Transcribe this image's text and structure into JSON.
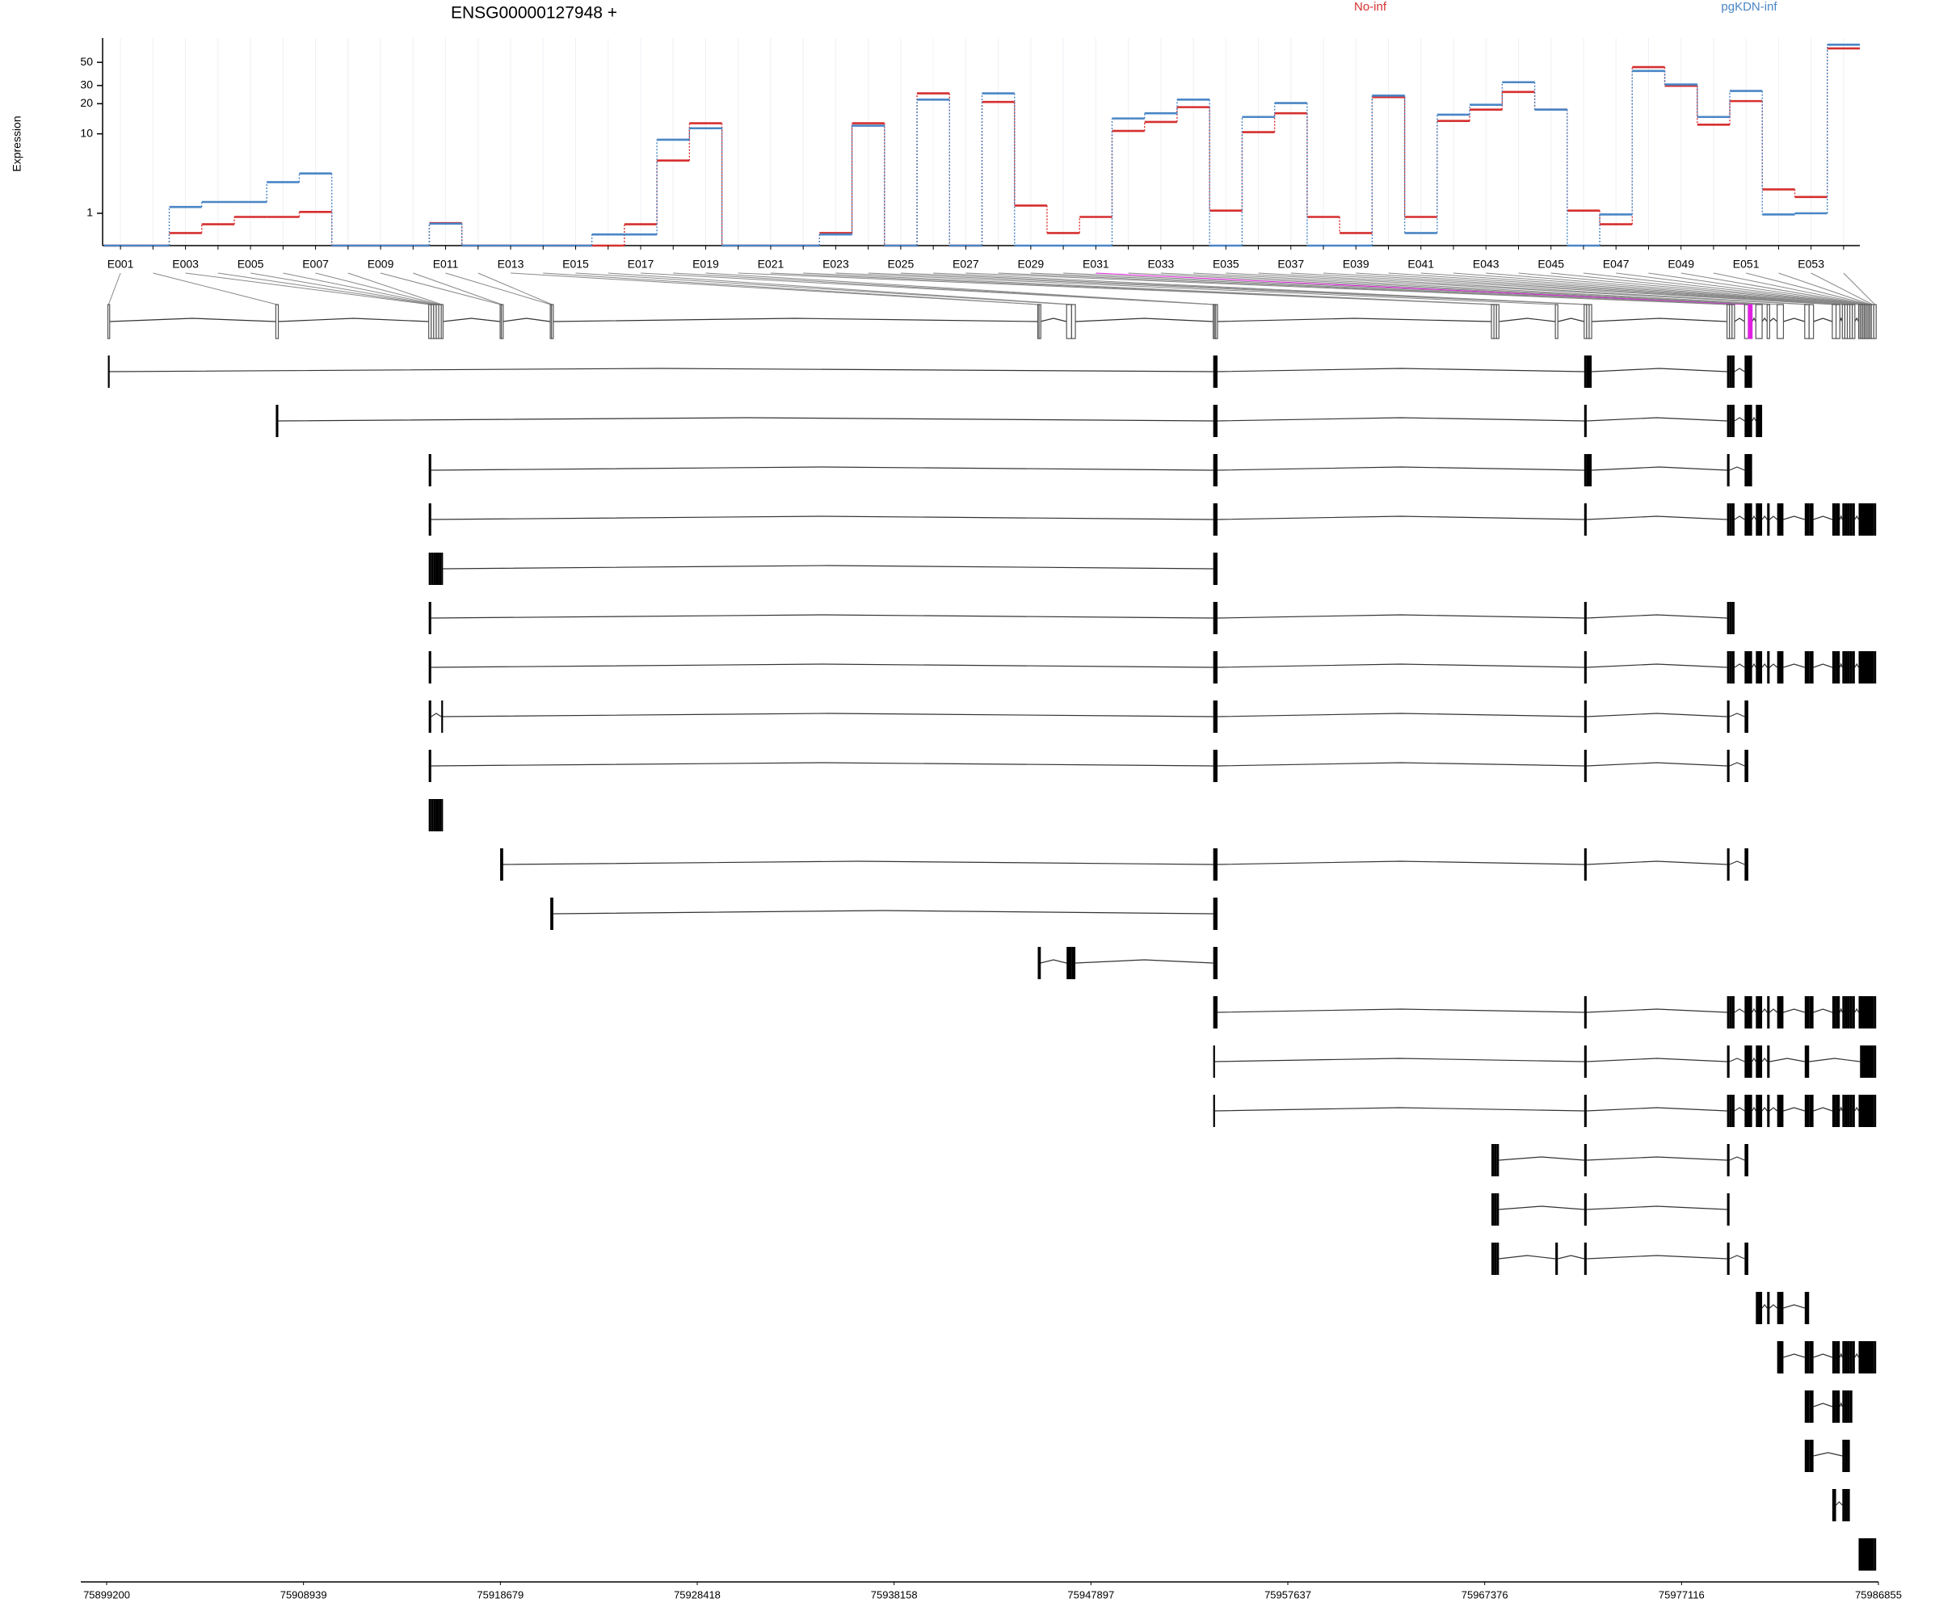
{
  "chart_data": {
    "type": "step",
    "title": "ENSG00000127948 +",
    "y_label": "Expression",
    "yscale": "log1p",
    "ylim": [
      0,
      85
    ],
    "yticks": [
      1,
      10,
      20,
      30,
      50
    ],
    "categories": [
      "E001",
      null,
      "E003",
      null,
      "E005",
      null,
      "E007",
      null,
      "E009",
      null,
      "E011",
      null,
      "E013",
      null,
      "E015",
      null,
      "E017",
      null,
      "E019",
      null,
      "E021",
      null,
      "E023",
      null,
      "E025",
      null,
      "E027",
      null,
      "E029",
      null,
      "E031",
      null,
      "E033",
      null,
      "E035",
      null,
      "E037",
      null,
      "E039",
      null,
      "E041",
      null,
      "E043",
      null,
      "E045",
      null,
      "E047",
      null,
      "E049",
      null,
      "E051",
      null,
      "E053",
      null
    ],
    "series": [
      {
        "name": "No-inf",
        "color": "#d62f2f",
        "values": [
          0,
          0,
          0.31,
          0.58,
          0.85,
          0.85,
          1.06,
          0,
          0,
          0,
          0.62,
          0,
          0,
          0,
          0,
          0,
          0.58,
          5.2,
          12.8,
          0,
          0,
          0,
          0.31,
          12.8,
          0,
          25.2,
          0,
          20.8,
          1.36,
          0.31,
          0.85,
          10.7,
          13.2,
          18.5,
          1.12,
          10.4,
          16.1,
          0.85,
          0.31,
          23.2,
          0.85,
          13.5,
          17.5,
          26,
          17.5,
          1.12,
          0.58,
          45,
          29.8,
          12.4,
          21.2,
          2.34,
          1.84,
          67.7
        ]
      },
      {
        "name": "pgKDN-inf",
        "color": "#4a86c5",
        "values": [
          0,
          0,
          1.29,
          1.55,
          1.55,
          2.9,
          3.7,
          0,
          0,
          0,
          0.6,
          0,
          0,
          0,
          0,
          0.27,
          0.27,
          8.7,
          11.4,
          0,
          0,
          0,
          0.27,
          12.1,
          0,
          21.9,
          0,
          25.2,
          0,
          0,
          0,
          14.3,
          16.1,
          21.9,
          0,
          14.8,
          20.3,
          0,
          0,
          24,
          0.31,
          15.6,
          19.5,
          32.3,
          17.5,
          0,
          0.95,
          41.4,
          30.7,
          14.8,
          26.6,
          0.95,
          1,
          73.5
        ]
      }
    ],
    "highlight": {
      "exon": 30,
      "color": "#e020e0"
    },
    "x2lim": [
      75899200,
      75986855
    ],
    "x2ticks": [
      75899200,
      75908939,
      75918679,
      75928418,
      75938158,
      75947897,
      75957637,
      75967376,
      75977116,
      75986855
    ],
    "exons": [
      [
        75899262,
        75899324
      ],
      [
        75907570,
        75907694
      ],
      [
        75915134,
        75915258
      ],
      [
        75915258,
        75915382
      ],
      [
        75915382,
        75915506
      ],
      [
        75915506,
        75915630
      ],
      [
        75915630,
        75915754
      ],
      [
        75915754,
        75915816
      ],
      [
        75918668,
        75918730
      ],
      [
        75918730,
        75918792
      ],
      [
        75921148,
        75921210
      ],
      [
        75921210,
        75921272
      ],
      [
        75945266,
        75945328
      ],
      [
        75945328,
        75945390
      ],
      [
        75946692,
        75946940
      ],
      [
        75946940,
        75947126
      ],
      [
        75953946,
        75954008
      ],
      [
        75954008,
        75954070
      ],
      [
        75954070,
        75954132
      ],
      [
        75967710,
        75967834
      ],
      [
        75967834,
        75967958
      ],
      [
        75967958,
        75968082
      ],
      [
        75970872,
        75970996
      ],
      [
        75972298,
        75972422
      ],
      [
        75972422,
        75972546
      ],
      [
        75972546,
        75972670
      ],
      [
        75979366,
        75979490
      ],
      [
        75979490,
        75979614
      ],
      [
        75979614,
        75979738
      ],
      [
        75980234,
        75980420
      ],
      [
        75980420,
        75980606
      ],
      [
        75980792,
        75981102
      ],
      [
        75981350,
        75981474
      ],
      [
        75981846,
        75982156
      ],
      [
        75983210,
        75983427
      ],
      [
        75983427,
        75983644
      ],
      [
        75984574,
        75984760
      ],
      [
        75984760,
        75984946
      ],
      [
        75985070,
        75985194
      ],
      [
        75985194,
        75985318
      ],
      [
        75985318,
        75985442
      ],
      [
        75985442,
        75985566
      ],
      [
        75985566,
        75985690
      ],
      [
        75985876,
        75985946
      ],
      [
        75985946,
        75986016
      ],
      [
        75986016,
        75986086
      ],
      [
        75986086,
        75986156
      ],
      [
        75986156,
        75986226
      ],
      [
        75986226,
        75986296
      ],
      [
        75986296,
        75986366
      ],
      [
        75986366,
        75986436
      ],
      [
        75986436,
        75986506
      ],
      [
        75986506,
        75986626
      ],
      [
        75986626,
        75986744
      ]
    ],
    "transcripts": [
      [
        0,
        16,
        17,
        18,
        23,
        24,
        25,
        26,
        27,
        28,
        29,
        30
      ],
      [
        1,
        16,
        17,
        18,
        23,
        26,
        27,
        28,
        29,
        30,
        31
      ],
      [
        2,
        16,
        17,
        18,
        23,
        24,
        25,
        26,
        29,
        30
      ],
      [
        2,
        16,
        17,
        18,
        23,
        26,
        27,
        28,
        29,
        30,
        31,
        32,
        33,
        34,
        35,
        36,
        37,
        38,
        39,
        40,
        41,
        42,
        43,
        44,
        45,
        46,
        47,
        48,
        49,
        50,
        51,
        52,
        53
      ],
      [
        2,
        3,
        4,
        5,
        6,
        7,
        16,
        17,
        18
      ],
      [
        2,
        16,
        17,
        18,
        23,
        26,
        27,
        28
      ],
      [
        2,
        16,
        17,
        18,
        23,
        26,
        27,
        28,
        29,
        30,
        31,
        32,
        33,
        34,
        35,
        36,
        37,
        38,
        39,
        40,
        41,
        42,
        43,
        44,
        45,
        46,
        47,
        48,
        49,
        50,
        51,
        52,
        53
      ],
      [
        2,
        7,
        16,
        17,
        18,
        23,
        26,
        29
      ],
      [
        2,
        16,
        17,
        18,
        23,
        26,
        29
      ],
      [
        2,
        3,
        4,
        5,
        6,
        7
      ],
      [
        8,
        9,
        16,
        17,
        18,
        23,
        26,
        29
      ],
      [
        10,
        11,
        16,
        17,
        18
      ],
      [
        12,
        13,
        14,
        15,
        16,
        17,
        18
      ],
      [
        16,
        17,
        18,
        23,
        26,
        27,
        28,
        29,
        30,
        31,
        32,
        33,
        34,
        35,
        36,
        37,
        38,
        39,
        40,
        41,
        42,
        43,
        44,
        45,
        46,
        47,
        48,
        49,
        50,
        51,
        52,
        53
      ],
      [
        16,
        23,
        26,
        29,
        30,
        31,
        32,
        34,
        44,
        45,
        46,
        47,
        48,
        49,
        50,
        51,
        52,
        53
      ],
      [
        16,
        23,
        26,
        27,
        28,
        29,
        30,
        31,
        32,
        33,
        34,
        35,
        36,
        37,
        38,
        39,
        40,
        41,
        42,
        43,
        44,
        45,
        46,
        47,
        48,
        49,
        50,
        51,
        52,
        53
      ],
      [
        19,
        20,
        21,
        23,
        26,
        29
      ],
      [
        19,
        20,
        21,
        23,
        26
      ],
      [
        19,
        20,
        21,
        22,
        23,
        26,
        29
      ],
      [
        31,
        32,
        33,
        34
      ],
      [
        33,
        34,
        35,
        36,
        37,
        38,
        39,
        40,
        41,
        42,
        43,
        44,
        45,
        46,
        47,
        48,
        49,
        50,
        51,
        52,
        53
      ],
      [
        34,
        35,
        36,
        37,
        38,
        39,
        40,
        41
      ],
      [
        34,
        35,
        38,
        39,
        40
      ],
      [
        36,
        38,
        39,
        40
      ],
      [
        43,
        44,
        45,
        46,
        47,
        48,
        49,
        50,
        51,
        52,
        53
      ]
    ]
  }
}
